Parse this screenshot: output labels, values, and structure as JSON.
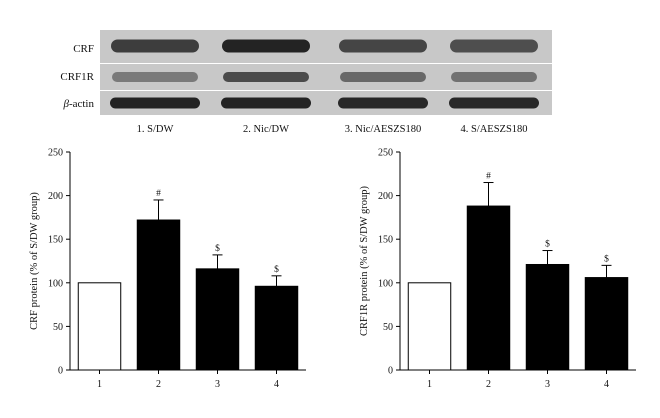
{
  "blot": {
    "rows": [
      {
        "label": "CRF"
      },
      {
        "label": "CRF1R"
      },
      {
        "label_greek": "β",
        "label_rest": "-actin"
      }
    ],
    "lanes": [
      "1. S/DW",
      "2. Nic/DW",
      "3. Nic/AESZS180",
      "4. S/AESZS180"
    ],
    "band_intensity": [
      [
        0.8,
        0.95,
        0.75,
        0.7
      ],
      [
        0.45,
        0.72,
        0.55,
        0.5
      ],
      [
        0.95,
        0.95,
        0.92,
        0.92
      ]
    ],
    "colors": {
      "membrane": "#c8c8c8",
      "band": "#1a1a1a"
    }
  },
  "chart_data": [
    {
      "type": "bar",
      "categories": [
        "1",
        "2",
        "3",
        "4"
      ],
      "values": [
        100,
        172,
        116,
        96
      ],
      "errors": [
        0,
        23,
        16,
        12
      ],
      "annotations": [
        "",
        "#",
        "$",
        "$"
      ],
      "fills": [
        "#ffffff",
        "#000000",
        "#000000",
        "#000000"
      ],
      "yticks": [
        "0",
        "50",
        "100",
        "150",
        "200",
        "250"
      ],
      "ylabel": "CRF protein (% of S/DW group)",
      "xlabel": "",
      "ylim": [
        0,
        250
      ]
    },
    {
      "type": "bar",
      "categories": [
        "1",
        "2",
        "3",
        "4"
      ],
      "values": [
        100,
        188,
        121,
        106
      ],
      "errors": [
        0,
        27,
        16,
        14
      ],
      "annotations": [
        "",
        "#",
        "$",
        "$"
      ],
      "fills": [
        "#ffffff",
        "#000000",
        "#000000",
        "#000000"
      ],
      "yticks": [
        "0",
        "50",
        "100",
        "150",
        "200",
        "250"
      ],
      "ylabel": "CRF1R protein (% of S/DW group)",
      "xlabel": "",
      "ylim": [
        0,
        250
      ]
    }
  ]
}
